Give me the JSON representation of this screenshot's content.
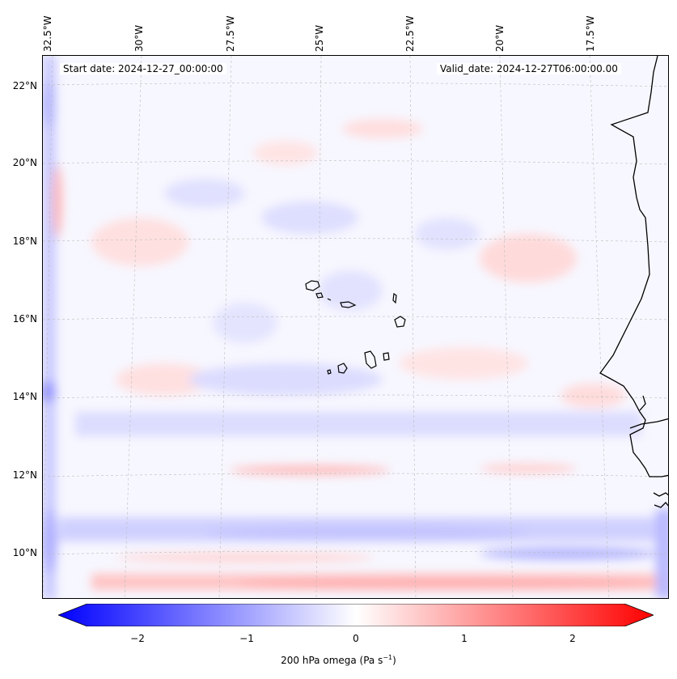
{
  "map": {
    "start_label": "Start date: 2024-12-27_00:00:00",
    "valid_label": "Valid_date: 2024-12-27T06:00:00.00",
    "lon_ticks": [
      "32.5°W",
      "30°W",
      "27.5°W",
      "25°W",
      "22.5°W",
      "20°W",
      "17.5°W"
    ],
    "lat_ticks": [
      "22°N",
      "20°N",
      "18°N",
      "16°N",
      "14°N",
      "12°N",
      "10°N"
    ],
    "gridlines": true,
    "field": "omega"
  },
  "colorbar": {
    "ticks": [
      "−2",
      "−1",
      "0",
      "1",
      "2"
    ],
    "title": "200 hPa omega (Pa s",
    "title_sup": "−1",
    "title_end": ")",
    "range": [
      -2.6,
      2.6
    ],
    "colors": {
      "min": "#0000ff",
      "mid": "#ffffff",
      "max": "#ff0000"
    }
  }
}
